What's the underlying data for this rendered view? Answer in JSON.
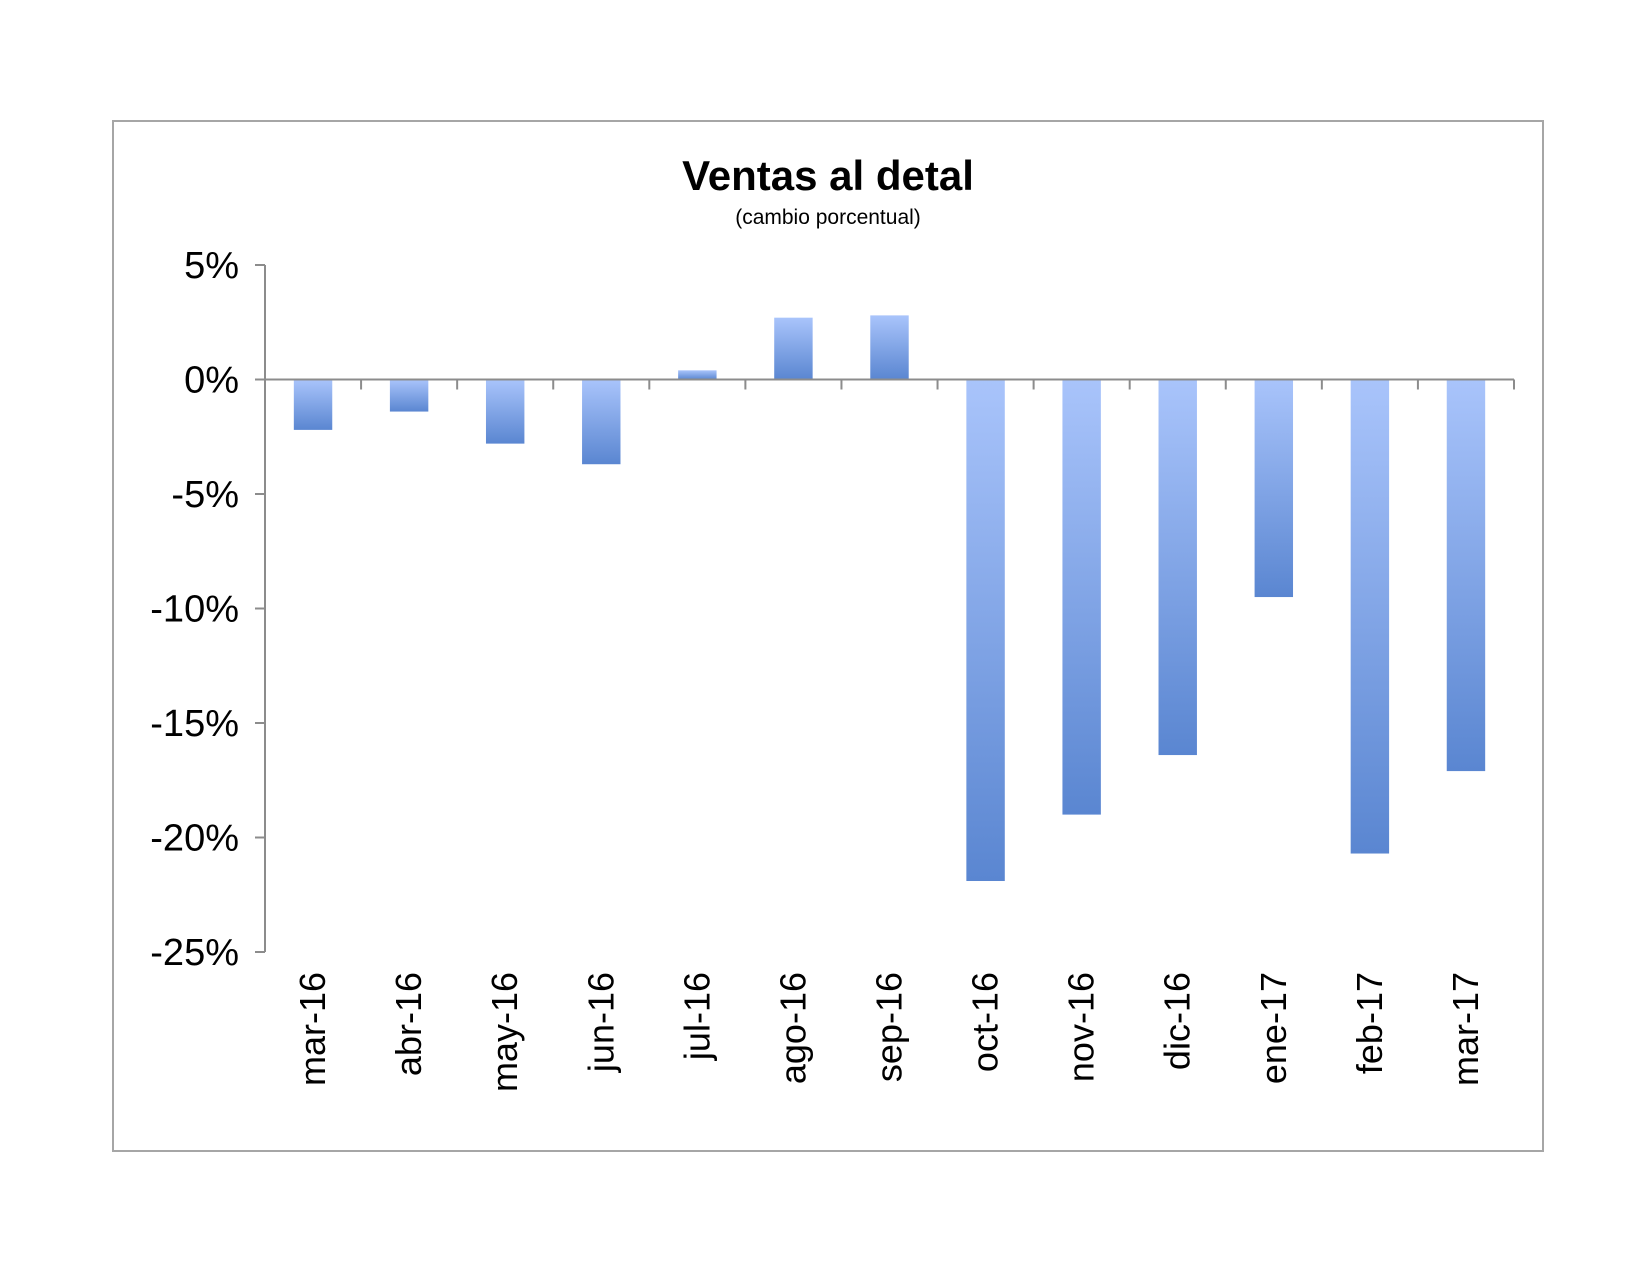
{
  "chart_data": {
    "type": "bar",
    "title": "Ventas al detal",
    "subtitle": "(cambio porcentual)",
    "xlabel": "",
    "ylabel": "",
    "categories": [
      "mar-16",
      "abr-16",
      "may-16",
      "jun-16",
      "jul-16",
      "ago-16",
      "sep-16",
      "oct-16",
      "nov-16",
      "dic-16",
      "ene-17",
      "feb-17",
      "mar-17"
    ],
    "values": [
      -2.2,
      -1.4,
      -2.8,
      -3.7,
      0.4,
      2.7,
      2.8,
      -21.9,
      -19.0,
      -16.4,
      -9.5,
      -20.7,
      -17.1
    ],
    "ylim": [
      -25,
      5
    ],
    "yticks": [
      5,
      0,
      -5,
      -10,
      -15,
      -20,
      -25
    ],
    "ytick_labels": [
      "5%",
      "0%",
      "-5%",
      "-10%",
      "-15%",
      "-20%",
      "-25%"
    ],
    "grid": false,
    "legend": "none",
    "colors": {
      "bar_light": "#a9c4fb",
      "bar_dark": "#5a86d1",
      "axis": "#8c8c8c",
      "frame": "#a6a6a6"
    }
  }
}
